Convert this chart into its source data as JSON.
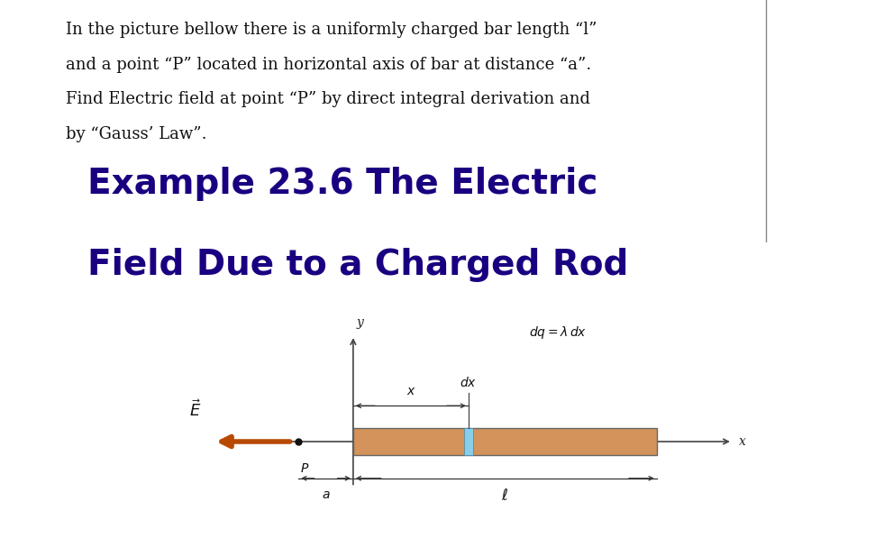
{
  "bg_color": "#ffffff",
  "fig_width": 9.71,
  "fig_height": 5.97,
  "description_text_lines": [
    "In the picture bellow there is a uniformly charged bar length “l”",
    "and a point “P” located in horizontal axis of bar at distance “a”.",
    "Find Electric field at point “P” by direct integral derivation and",
    "by “Gauss’ Law”."
  ],
  "title_line1": "Example 23.6 The Electric",
  "title_line2": "Field Due to a Charged Rod",
  "title_color": "#1a0080",
  "title_fontsize": 28,
  "desc_fontsize": 13,
  "rod_color": "#d4935a",
  "dx_highlight_color": "#87ceeb",
  "arrow_color": "#333333",
  "E_arrow_color": "#b84a00"
}
